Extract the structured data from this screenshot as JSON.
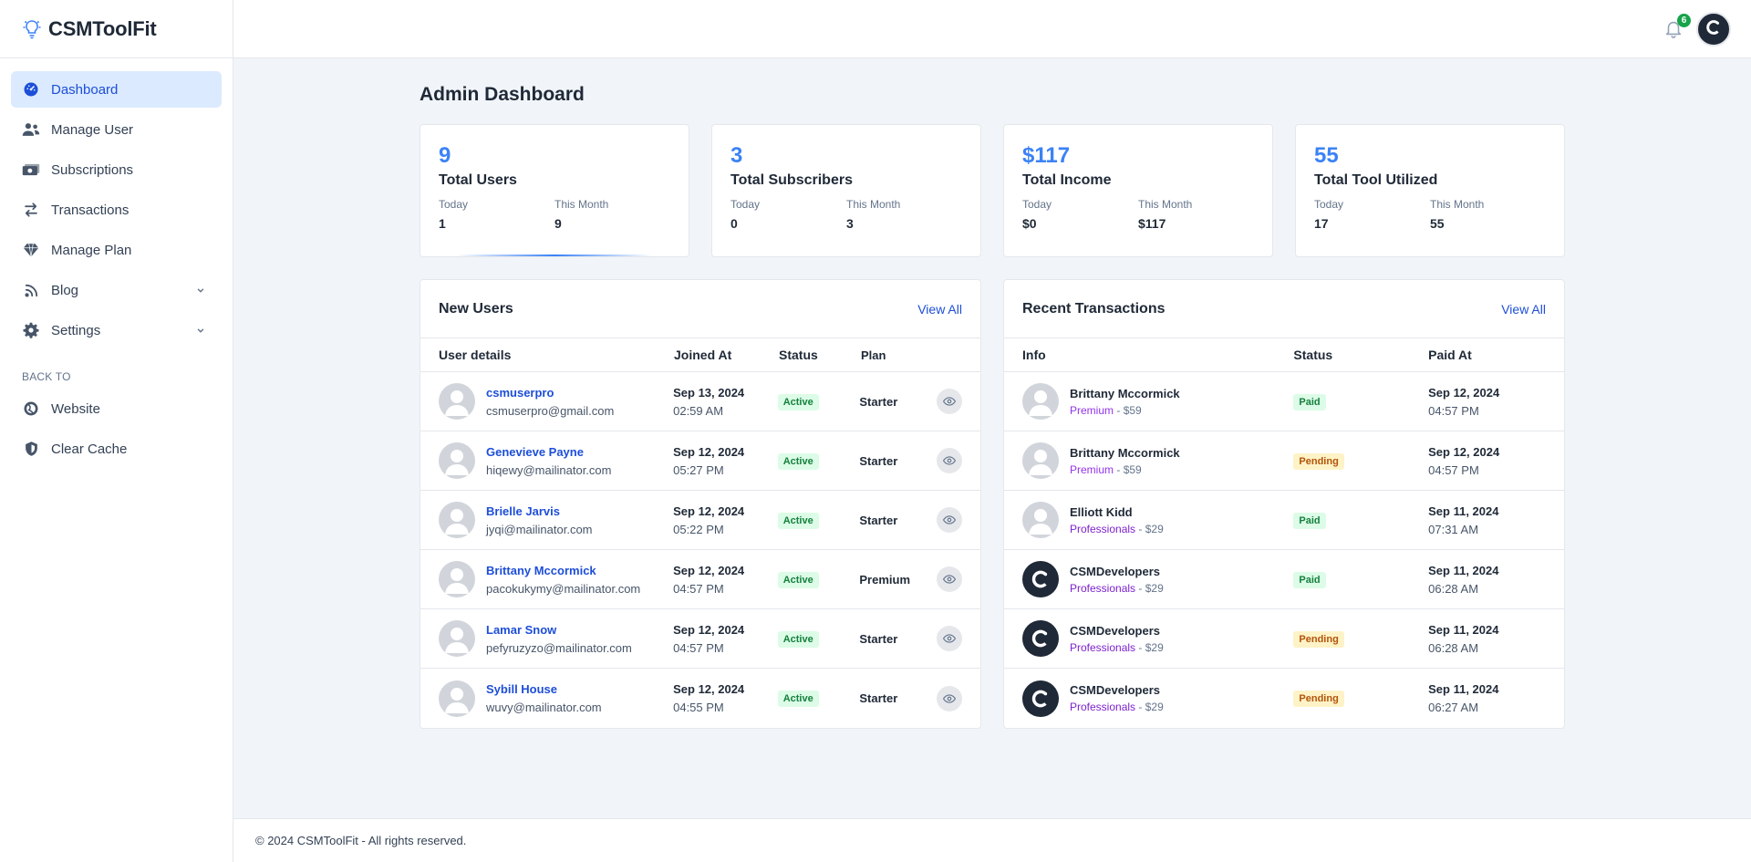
{
  "brand": {
    "name": "CSMToolFit"
  },
  "sidebar": {
    "items": [
      {
        "label": "Dashboard",
        "icon": "gauge-icon",
        "active": true
      },
      {
        "label": "Manage User",
        "icon": "users-icon"
      },
      {
        "label": "Subscriptions",
        "icon": "money-icon"
      },
      {
        "label": "Transactions",
        "icon": "arrows-exchange-icon"
      },
      {
        "label": "Manage Plan",
        "icon": "diamond-icon"
      },
      {
        "label": "Blog",
        "icon": "rss-icon",
        "has_children": true
      },
      {
        "label": "Settings",
        "icon": "gear-icon",
        "has_children": true
      }
    ],
    "section_label": "BACK TO",
    "back_items": [
      {
        "label": "Website",
        "icon": "globe-icon"
      },
      {
        "label": "Clear Cache",
        "icon": "shield-icon"
      }
    ]
  },
  "header": {
    "notification_count": "6"
  },
  "page": {
    "title": "Admin Dashboard"
  },
  "stats": [
    {
      "value": "9",
      "label": "Total Users",
      "today_label": "Today",
      "today": "1",
      "month_label": "This Month",
      "month": "9"
    },
    {
      "value": "3",
      "label": "Total Subscribers",
      "today_label": "Today",
      "today": "0",
      "month_label": "This Month",
      "month": "3"
    },
    {
      "value": "$117",
      "label": "Total Income",
      "today_label": "Today",
      "today": "$0",
      "month_label": "This Month",
      "month": "$117"
    },
    {
      "value": "55",
      "label": "Total Tool Utilized",
      "today_label": "Today",
      "today": "17",
      "month_label": "This Month",
      "month": "55"
    }
  ],
  "new_users": {
    "title": "New Users",
    "view_all": "View All",
    "columns": [
      "User details",
      "Joined At",
      "Status",
      "Plan"
    ],
    "rows": [
      {
        "name": "csmuserpro",
        "email": "csmuserpro@gmail.com",
        "date": "Sep 13, 2024",
        "time": "02:59 AM",
        "status": "Active",
        "plan": "Starter"
      },
      {
        "name": "Genevieve Payne",
        "email": "hiqewy@mailinator.com",
        "date": "Sep 12, 2024",
        "time": "05:27 PM",
        "status": "Active",
        "plan": "Starter"
      },
      {
        "name": "Brielle Jarvis",
        "email": "jyqi@mailinator.com",
        "date": "Sep 12, 2024",
        "time": "05:22 PM",
        "status": "Active",
        "plan": "Starter"
      },
      {
        "name": "Brittany Mccormick",
        "email": "pacokukymy@mailinator.com",
        "date": "Sep 12, 2024",
        "time": "04:57 PM",
        "status": "Active",
        "plan": "Premium"
      },
      {
        "name": "Lamar Snow",
        "email": "pefyruzyzo@mailinator.com",
        "date": "Sep 12, 2024",
        "time": "04:57 PM",
        "status": "Active",
        "plan": "Starter"
      },
      {
        "name": "Sybill House",
        "email": "wuvy@mailinator.com",
        "date": "Sep 12, 2024",
        "time": "04:55 PM",
        "status": "Active",
        "plan": "Starter"
      }
    ]
  },
  "transactions": {
    "title": "Recent Transactions",
    "view_all": "View All",
    "columns": [
      "Info",
      "Status",
      "Paid At"
    ],
    "rows": [
      {
        "name": "Brittany Mccormick",
        "plan": "Premium",
        "sep": "-",
        "amount": "$59",
        "status": "Paid",
        "date": "Sep 12, 2024",
        "time": "04:57 PM",
        "avatar": "default"
      },
      {
        "name": "Brittany Mccormick",
        "plan": "Premium",
        "sep": "-",
        "amount": "$59",
        "status": "Pending",
        "date": "Sep 12, 2024",
        "time": "04:57 PM",
        "avatar": "default"
      },
      {
        "name": "Elliott Kidd",
        "plan": "Professionals",
        "sep": "-",
        "amount": "$29",
        "status": "Paid",
        "date": "Sep 11, 2024",
        "time": "07:31 AM",
        "avatar": "default"
      },
      {
        "name": "CSMDevelopers",
        "plan": "Professionals",
        "sep": "-",
        "amount": "$29",
        "status": "Paid",
        "date": "Sep 11, 2024",
        "time": "06:28 AM",
        "avatar": "logo"
      },
      {
        "name": "CSMDevelopers",
        "plan": "Professionals",
        "sep": "-",
        "amount": "$29",
        "status": "Pending",
        "date": "Sep 11, 2024",
        "time": "06:28 AM",
        "avatar": "logo"
      },
      {
        "name": "CSMDevelopers",
        "plan": "Professionals",
        "sep": "-",
        "amount": "$29",
        "status": "Pending",
        "date": "Sep 11, 2024",
        "time": "06:27 AM",
        "avatar": "logo"
      }
    ]
  },
  "footer": {
    "text": "© 2024 CSMToolFit - All rights reserved."
  },
  "colors": {
    "accent": "#1d4ed8",
    "stat_value": "#3b82f6",
    "active_nav_bg": "#dbeafe",
    "paid": "#15803d",
    "pending": "#b45309"
  }
}
